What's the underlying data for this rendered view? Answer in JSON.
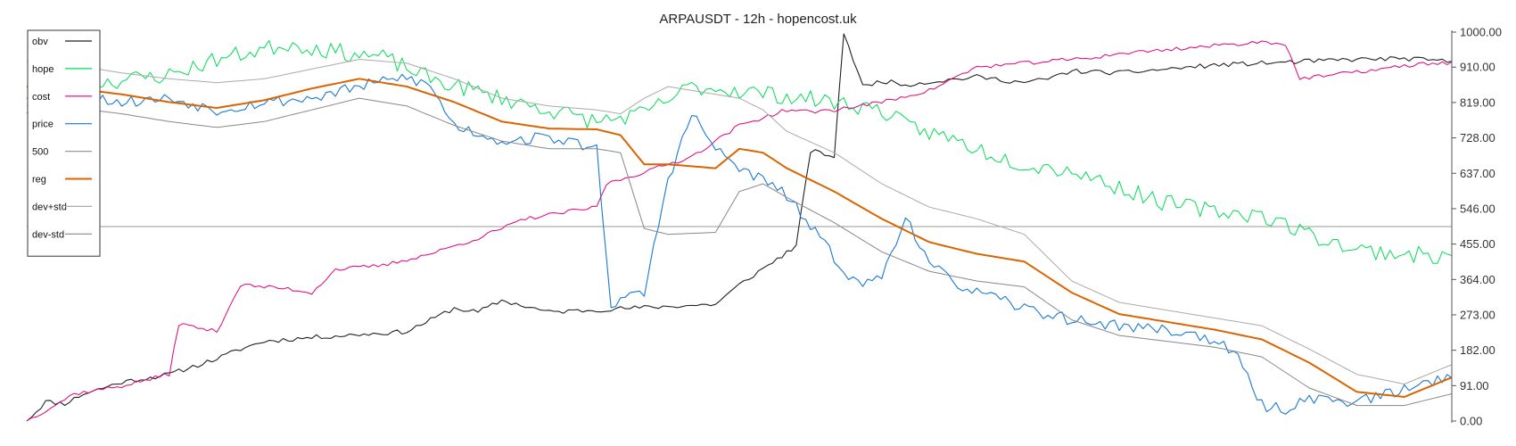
{
  "chart_data": {
    "type": "line",
    "title": "ARPAUSDT - 12h - hopencost.uk",
    "ylim": [
      0,
      1000
    ],
    "y_ticks": [
      "1000.00",
      "910.00",
      "819.00",
      "728.00",
      "637.00",
      "546.00",
      "455.00",
      "364.00",
      "273.00",
      "182.00",
      "91.00",
      "0.00"
    ],
    "y_tick_values": [
      1000,
      910,
      819,
      728,
      637,
      546,
      455,
      364,
      273,
      182,
      91,
      0
    ],
    "hline": 500,
    "x_count": 301,
    "legend_position": "top-left",
    "legend": [
      {
        "label": "obv",
        "color": "#222222"
      },
      {
        "label": "hope",
        "color": "#00dd55"
      },
      {
        "label": "cost",
        "color": "#e0007a"
      },
      {
        "label": "price",
        "color": "#1a78d4"
      },
      {
        "label": "500",
        "color": "#999999"
      },
      {
        "label": "reg",
        "color": "#d96400"
      },
      {
        "label": "dev+std",
        "color": "#aaaaaa"
      },
      {
        "label": "dev-std",
        "color": "#888888"
      }
    ],
    "series": [
      {
        "name": "obv",
        "color": "#222222",
        "width": 1.1,
        "jitter": 6,
        "seed": 11,
        "anchors": [
          [
            0,
            0
          ],
          [
            4,
            50
          ],
          [
            8,
            45
          ],
          [
            12,
            70
          ],
          [
            20,
            100
          ],
          [
            30,
            120
          ],
          [
            40,
            160
          ],
          [
            45,
            185
          ],
          [
            50,
            205
          ],
          [
            60,
            215
          ],
          [
            80,
            230
          ],
          [
            90,
            290
          ],
          [
            95,
            280
          ],
          [
            100,
            310
          ],
          [
            110,
            280
          ],
          [
            130,
            292
          ],
          [
            145,
            300
          ],
          [
            150,
            350
          ],
          [
            162,
            450
          ],
          [
            165,
            695
          ],
          [
            170,
            680
          ],
          [
            172,
            1000
          ],
          [
            176,
            860
          ],
          [
            180,
            875
          ],
          [
            185,
            865
          ],
          [
            200,
            885
          ],
          [
            210,
            870
          ],
          [
            215,
            880
          ],
          [
            220,
            900
          ],
          [
            230,
            895
          ],
          [
            240,
            905
          ],
          [
            250,
            915
          ],
          [
            260,
            920
          ],
          [
            270,
            925
          ],
          [
            280,
            930
          ],
          [
            290,
            932
          ],
          [
            300,
            924
          ]
        ]
      },
      {
        "name": "hope",
        "color": "#00dd55",
        "width": 1.0,
        "jitter": 22,
        "seed": 23,
        "anchors": [
          [
            0,
            840
          ],
          [
            5,
            900
          ],
          [
            15,
            870
          ],
          [
            30,
            890
          ],
          [
            40,
            930
          ],
          [
            55,
            970
          ],
          [
            65,
            950
          ],
          [
            75,
            935
          ],
          [
            85,
            880
          ],
          [
            100,
            830
          ],
          [
            110,
            800
          ],
          [
            120,
            770
          ],
          [
            130,
            790
          ],
          [
            140,
            860
          ],
          [
            150,
            850
          ],
          [
            160,
            835
          ],
          [
            170,
            820
          ],
          [
            180,
            800
          ],
          [
            185,
            760
          ],
          [
            195,
            725
          ],
          [
            200,
            700
          ],
          [
            210,
            660
          ],
          [
            220,
            645
          ],
          [
            230,
            600
          ],
          [
            240,
            560
          ],
          [
            250,
            540
          ],
          [
            260,
            530
          ],
          [
            270,
            480
          ],
          [
            280,
            440
          ],
          [
            290,
            430
          ],
          [
            300,
            420
          ]
        ]
      },
      {
        "name": "cost",
        "color": "#e0007a",
        "width": 1.0,
        "jitter": 5,
        "seed": 37,
        "anchors": [
          [
            0,
            0
          ],
          [
            10,
            70
          ],
          [
            20,
            90
          ],
          [
            30,
            120
          ],
          [
            32,
            250
          ],
          [
            40,
            230
          ],
          [
            45,
            350
          ],
          [
            55,
            340
          ],
          [
            60,
            330
          ],
          [
            65,
            390
          ],
          [
            75,
            400
          ],
          [
            85,
            430
          ],
          [
            95,
            470
          ],
          [
            105,
            520
          ],
          [
            115,
            540
          ],
          [
            120,
            550
          ],
          [
            122,
            610
          ],
          [
            130,
            640
          ],
          [
            140,
            680
          ],
          [
            150,
            760
          ],
          [
            160,
            800
          ],
          [
            165,
            795
          ],
          [
            170,
            800
          ],
          [
            180,
            820
          ],
          [
            190,
            850
          ],
          [
            195,
            880
          ],
          [
            200,
            910
          ],
          [
            210,
            920
          ],
          [
            220,
            930
          ],
          [
            225,
            935
          ],
          [
            230,
            945
          ],
          [
            240,
            955
          ],
          [
            260,
            975
          ],
          [
            265,
            970
          ],
          [
            268,
            880
          ],
          [
            275,
            890
          ],
          [
            285,
            905
          ],
          [
            295,
            920
          ],
          [
            300,
            920
          ]
        ]
      },
      {
        "name": "price",
        "color": "#1a78d4",
        "width": 1.1,
        "jitter": 15,
        "seed": 53,
        "anchors": [
          [
            0,
            800
          ],
          [
            10,
            840
          ],
          [
            20,
            820
          ],
          [
            30,
            830
          ],
          [
            40,
            800
          ],
          [
            50,
            820
          ],
          [
            60,
            830
          ],
          [
            70,
            860
          ],
          [
            80,
            885
          ],
          [
            85,
            860
          ],
          [
            90,
            760
          ],
          [
            100,
            720
          ],
          [
            110,
            730
          ],
          [
            120,
            700
          ],
          [
            123,
            300
          ],
          [
            130,
            330
          ],
          [
            135,
            620
          ],
          [
            140,
            790
          ],
          [
            145,
            700
          ],
          [
            150,
            650
          ],
          [
            155,
            620
          ],
          [
            160,
            580
          ],
          [
            165,
            500
          ],
          [
            170,
            420
          ],
          [
            175,
            350
          ],
          [
            180,
            370
          ],
          [
            185,
            530
          ],
          [
            190,
            400
          ],
          [
            195,
            360
          ],
          [
            200,
            330
          ],
          [
            210,
            290
          ],
          [
            220,
            260
          ],
          [
            230,
            245
          ],
          [
            240,
            235
          ],
          [
            250,
            210
          ],
          [
            255,
            160
          ],
          [
            260,
            40
          ],
          [
            265,
            30
          ],
          [
            270,
            60
          ],
          [
            280,
            50
          ],
          [
            290,
            80
          ],
          [
            300,
            120
          ]
        ]
      },
      {
        "name": "reg",
        "color": "#d96400",
        "width": 2.0,
        "jitter": 0,
        "seed": 0,
        "anchors": [
          [
            0,
            860
          ],
          [
            10,
            855
          ],
          [
            20,
            840
          ],
          [
            30,
            820
          ],
          [
            40,
            805
          ],
          [
            50,
            825
          ],
          [
            60,
            855
          ],
          [
            70,
            880
          ],
          [
            80,
            860
          ],
          [
            90,
            820
          ],
          [
            100,
            770
          ],
          [
            110,
            752
          ],
          [
            120,
            750
          ],
          [
            125,
            735
          ],
          [
            130,
            660
          ],
          [
            135,
            660
          ],
          [
            145,
            650
          ],
          [
            150,
            700
          ],
          [
            155,
            690
          ],
          [
            160,
            650
          ],
          [
            170,
            590
          ],
          [
            180,
            520
          ],
          [
            190,
            460
          ],
          [
            200,
            430
          ],
          [
            210,
            410
          ],
          [
            220,
            330
          ],
          [
            230,
            275
          ],
          [
            240,
            255
          ],
          [
            250,
            235
          ],
          [
            260,
            210
          ],
          [
            270,
            150
          ],
          [
            280,
            75
          ],
          [
            290,
            62
          ],
          [
            300,
            112
          ]
        ]
      },
      {
        "name": "dev+std",
        "color": "#aaaaaa",
        "width": 1.0,
        "jitter": 0,
        "seed": 0,
        "anchors": [
          [
            0,
            925
          ],
          [
            10,
            915
          ],
          [
            20,
            895
          ],
          [
            30,
            880
          ],
          [
            40,
            870
          ],
          [
            50,
            880
          ],
          [
            60,
            905
          ],
          [
            70,
            930
          ],
          [
            80,
            920
          ],
          [
            90,
            880
          ],
          [
            100,
            830
          ],
          [
            110,
            810
          ],
          [
            120,
            800
          ],
          [
            125,
            790
          ],
          [
            130,
            830
          ],
          [
            135,
            860
          ],
          [
            145,
            840
          ],
          [
            150,
            830
          ],
          [
            155,
            800
          ],
          [
            160,
            745
          ],
          [
            170,
            690
          ],
          [
            180,
            610
          ],
          [
            190,
            550
          ],
          [
            200,
            520
          ],
          [
            210,
            480
          ],
          [
            220,
            360
          ],
          [
            230,
            305
          ],
          [
            240,
            285
          ],
          [
            250,
            265
          ],
          [
            260,
            245
          ],
          [
            270,
            185
          ],
          [
            280,
            120
          ],
          [
            290,
            95
          ],
          [
            300,
            145
          ]
        ]
      },
      {
        "name": "dev-std",
        "color": "#888888",
        "width": 1.0,
        "jitter": 0,
        "seed": 0,
        "anchors": [
          [
            0,
            810
          ],
          [
            10,
            805
          ],
          [
            20,
            790
          ],
          [
            30,
            770
          ],
          [
            40,
            755
          ],
          [
            50,
            770
          ],
          [
            60,
            800
          ],
          [
            70,
            830
          ],
          [
            80,
            810
          ],
          [
            90,
            760
          ],
          [
            100,
            720
          ],
          [
            110,
            700
          ],
          [
            120,
            700
          ],
          [
            125,
            690
          ],
          [
            130,
            495
          ],
          [
            135,
            480
          ],
          [
            145,
            485
          ],
          [
            150,
            590
          ],
          [
            155,
            610
          ],
          [
            160,
            575
          ],
          [
            170,
            510
          ],
          [
            180,
            435
          ],
          [
            190,
            385
          ],
          [
            200,
            360
          ],
          [
            210,
            345
          ],
          [
            220,
            260
          ],
          [
            230,
            220
          ],
          [
            240,
            205
          ],
          [
            250,
            190
          ],
          [
            260,
            165
          ],
          [
            270,
            85
          ],
          [
            280,
            40
          ],
          [
            290,
            40
          ],
          [
            300,
            70
          ]
        ]
      }
    ]
  }
}
